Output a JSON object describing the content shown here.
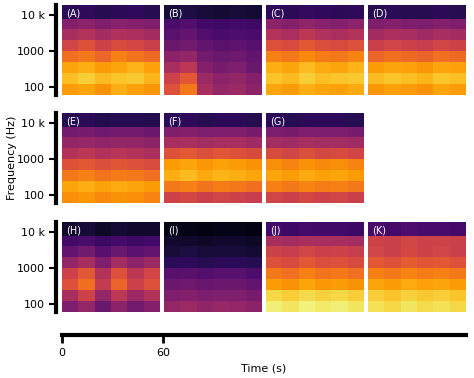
{
  "chart_data": [
    {
      "type": "heatmap",
      "title": "(A)",
      "log": "y",
      "tick_labels": "y",
      "xlim": [
        0,
        60
      ],
      "ylim": [
        60,
        19000
      ],
      "yticks": [
        100,
        1000,
        {
          "value": 10000,
          "label": "10 k"
        }
      ],
      "color_range": [
        0,
        1
      ],
      "x_edges": [
        0,
        10,
        20,
        30,
        40,
        50,
        60
      ],
      "y_edges": [
        60,
        120,
        250,
        500,
        1000,
        2000,
        4000,
        8000,
        19000
      ],
      "cells": [
        [
          0.78,
          0.8,
          0.76,
          0.82,
          0.79,
          0.77
        ],
        [
          0.85,
          0.88,
          0.84,
          0.86,
          0.87,
          0.83
        ],
        [
          0.8,
          0.82,
          0.78,
          0.8,
          0.83,
          0.79
        ],
        [
          0.68,
          0.7,
          0.66,
          0.72,
          0.69,
          0.67
        ],
        [
          0.56,
          0.6,
          0.55,
          0.58,
          0.57,
          0.54
        ],
        [
          0.45,
          0.48,
          0.44,
          0.47,
          0.46,
          0.44
        ],
        [
          0.36,
          0.38,
          0.35,
          0.37,
          0.36,
          0.35
        ],
        [
          0.15,
          0.16,
          0.14,
          0.15,
          0.16,
          0.14
        ]
      ]
    },
    {
      "type": "heatmap",
      "title": "(B)",
      "log": "y",
      "tick_labels": false,
      "xlim": [
        0,
        60
      ],
      "ylim": [
        60,
        19000
      ],
      "color_range": [
        0,
        1
      ],
      "x_edges": [
        0,
        10,
        20,
        30,
        40,
        50,
        60
      ],
      "y_edges": [
        60,
        120,
        250,
        500,
        1000,
        2000,
        4000,
        8000,
        19000
      ],
      "cells": [
        [
          0.6,
          0.7,
          0.45,
          0.4,
          0.42,
          0.38
        ],
        [
          0.55,
          0.62,
          0.42,
          0.38,
          0.4,
          0.36
        ],
        [
          0.45,
          0.5,
          0.36,
          0.33,
          0.35,
          0.3
        ],
        [
          0.38,
          0.4,
          0.32,
          0.3,
          0.31,
          0.28
        ],
        [
          0.3,
          0.32,
          0.28,
          0.26,
          0.27,
          0.25
        ],
        [
          0.26,
          0.28,
          0.24,
          0.22,
          0.23,
          0.22
        ],
        [
          0.22,
          0.24,
          0.2,
          0.19,
          0.2,
          0.19
        ],
        [
          0.1,
          0.12,
          0.1,
          0.09,
          0.1,
          0.09
        ]
      ]
    },
    {
      "type": "heatmap",
      "title": "(C)",
      "log": "y",
      "tick_labels": false,
      "xlim": [
        0,
        60
      ],
      "ylim": [
        60,
        19000
      ],
      "color_range": [
        0,
        1
      ],
      "x_edges": [
        0,
        10,
        20,
        30,
        40,
        50,
        60
      ],
      "y_edges": [
        60,
        120,
        250,
        500,
        1000,
        2000,
        4000,
        8000,
        19000
      ],
      "cells": [
        [
          0.8,
          0.78,
          0.82,
          0.8,
          0.79,
          0.81
        ],
        [
          0.86,
          0.84,
          0.88,
          0.85,
          0.86,
          0.87
        ],
        [
          0.82,
          0.8,
          0.84,
          0.81,
          0.8,
          0.83
        ],
        [
          0.72,
          0.7,
          0.74,
          0.71,
          0.7,
          0.73
        ],
        [
          0.6,
          0.58,
          0.62,
          0.59,
          0.58,
          0.6
        ],
        [
          0.48,
          0.46,
          0.5,
          0.47,
          0.46,
          0.48
        ],
        [
          0.38,
          0.36,
          0.39,
          0.37,
          0.36,
          0.38
        ],
        [
          0.16,
          0.15,
          0.17,
          0.16,
          0.15,
          0.16
        ]
      ]
    },
    {
      "type": "heatmap",
      "title": "(D)",
      "log": "y",
      "tick_labels": false,
      "xlim": [
        0,
        60
      ],
      "ylim": [
        60,
        19000
      ],
      "color_range": [
        0,
        1
      ],
      "x_edges": [
        0,
        10,
        20,
        30,
        40,
        50,
        60
      ],
      "y_edges": [
        60,
        120,
        250,
        500,
        1000,
        2000,
        4000,
        8000,
        19000
      ],
      "cells": [
        [
          0.77,
          0.79,
          0.78,
          0.76,
          0.8,
          0.78
        ],
        [
          0.84,
          0.86,
          0.85,
          0.83,
          0.86,
          0.85
        ],
        [
          0.78,
          0.8,
          0.79,
          0.77,
          0.8,
          0.79
        ],
        [
          0.66,
          0.68,
          0.67,
          0.65,
          0.68,
          0.67
        ],
        [
          0.54,
          0.56,
          0.55,
          0.53,
          0.56,
          0.55
        ],
        [
          0.44,
          0.46,
          0.45,
          0.43,
          0.45,
          0.44
        ],
        [
          0.35,
          0.36,
          0.35,
          0.34,
          0.36,
          0.35
        ],
        [
          0.14,
          0.15,
          0.14,
          0.14,
          0.15,
          0.14
        ]
      ]
    },
    {
      "type": "heatmap",
      "title": "(E)",
      "log": "y",
      "tick_labels": "y",
      "xlim": [
        0,
        60
      ],
      "ylim": [
        60,
        19000
      ],
      "yticks": [
        100,
        1000,
        {
          "value": 10000,
          "label": "10 k"
        }
      ],
      "color_range": [
        0,
        1
      ],
      "x_edges": [
        0,
        10,
        20,
        30,
        40,
        50,
        60
      ],
      "y_edges": [
        60,
        120,
        250,
        500,
        1000,
        2000,
        4000,
        8000,
        19000
      ],
      "cells": [
        [
          0.75,
          0.77,
          0.74,
          0.76,
          0.75,
          0.73
        ],
        [
          0.8,
          0.82,
          0.79,
          0.81,
          0.8,
          0.78
        ],
        [
          0.7,
          0.72,
          0.69,
          0.71,
          0.7,
          0.68
        ],
        [
          0.6,
          0.62,
          0.59,
          0.61,
          0.6,
          0.58
        ],
        [
          0.48,
          0.5,
          0.47,
          0.49,
          0.48,
          0.46
        ],
        [
          0.4,
          0.41,
          0.39,
          0.4,
          0.4,
          0.38
        ],
        [
          0.32,
          0.33,
          0.31,
          0.32,
          0.32,
          0.3
        ],
        [
          0.14,
          0.15,
          0.13,
          0.14,
          0.14,
          0.13
        ]
      ]
    },
    {
      "type": "heatmap",
      "title": "(F)",
      "log": "y",
      "tick_labels": false,
      "xlim": [
        0,
        60
      ],
      "ylim": [
        60,
        19000
      ],
      "color_range": [
        0,
        1
      ],
      "x_edges": [
        0,
        10,
        20,
        30,
        40,
        50,
        60
      ],
      "y_edges": [
        60,
        120,
        250,
        500,
        1000,
        2000,
        4000,
        8000,
        19000
      ],
      "cells": [
        [
          0.55,
          0.57,
          0.54,
          0.56,
          0.55,
          0.53
        ],
        [
          0.7,
          0.72,
          0.69,
          0.71,
          0.7,
          0.68
        ],
        [
          0.82,
          0.84,
          0.81,
          0.83,
          0.82,
          0.8
        ],
        [
          0.78,
          0.8,
          0.77,
          0.79,
          0.78,
          0.76
        ],
        [
          0.6,
          0.62,
          0.59,
          0.61,
          0.6,
          0.58
        ],
        [
          0.45,
          0.46,
          0.44,
          0.45,
          0.45,
          0.43
        ],
        [
          0.35,
          0.36,
          0.34,
          0.35,
          0.35,
          0.33
        ],
        [
          0.15,
          0.16,
          0.14,
          0.15,
          0.15,
          0.14
        ]
      ]
    },
    {
      "type": "heatmap",
      "title": "(G)",
      "log": "y",
      "tick_labels": false,
      "xlim": [
        0,
        60
      ],
      "ylim": [
        60,
        19000
      ],
      "color_range": [
        0,
        1
      ],
      "x_edges": [
        0,
        10,
        20,
        30,
        40,
        50,
        60
      ],
      "y_edges": [
        60,
        120,
        250,
        500,
        1000,
        2000,
        4000,
        8000,
        19000
      ],
      "cells": [
        [
          0.56,
          0.54,
          0.57,
          0.55,
          0.56,
          0.54
        ],
        [
          0.72,
          0.7,
          0.73,
          0.71,
          0.72,
          0.7
        ],
        [
          0.8,
          0.78,
          0.81,
          0.79,
          0.8,
          0.78
        ],
        [
          0.75,
          0.73,
          0.76,
          0.74,
          0.75,
          0.73
        ],
        [
          0.58,
          0.56,
          0.59,
          0.57,
          0.58,
          0.56
        ],
        [
          0.44,
          0.43,
          0.45,
          0.44,
          0.44,
          0.43
        ],
        [
          0.34,
          0.33,
          0.35,
          0.34,
          0.34,
          0.33
        ],
        [
          0.15,
          0.14,
          0.15,
          0.15,
          0.15,
          0.14
        ]
      ]
    },
    {
      "type": "heatmap",
      "title": "(H)",
      "log": "y",
      "tick_labels": "y",
      "xlim": [
        0,
        60
      ],
      "ylim": [
        60,
        19000
      ],
      "yticks": [
        100,
        1000,
        {
          "value": 10000,
          "label": "10 k"
        }
      ],
      "color_range": [
        0,
        1
      ],
      "x_edges": [
        0,
        10,
        20,
        30,
        40,
        50,
        60
      ],
      "y_edges": [
        60,
        120,
        250,
        500,
        1000,
        2000,
        4000,
        8000,
        19000
      ],
      "cells": [
        [
          0.35,
          0.4,
          0.3,
          0.38,
          0.32,
          0.36
        ],
        [
          0.45,
          0.55,
          0.4,
          0.5,
          0.42,
          0.48
        ],
        [
          0.6,
          0.68,
          0.52,
          0.65,
          0.55,
          0.6
        ],
        [
          0.55,
          0.62,
          0.48,
          0.6,
          0.5,
          0.56
        ],
        [
          0.4,
          0.45,
          0.35,
          0.44,
          0.38,
          0.42
        ],
        [
          0.28,
          0.32,
          0.25,
          0.3,
          0.26,
          0.28
        ],
        [
          0.2,
          0.22,
          0.18,
          0.21,
          0.19,
          0.2
        ],
        [
          0.08,
          0.1,
          0.07,
          0.09,
          0.08,
          0.08
        ]
      ]
    },
    {
      "type": "heatmap",
      "title": "(I)",
      "log": "y",
      "tick_labels": false,
      "xlim": [
        0,
        60
      ],
      "ylim": [
        60,
        19000
      ],
      "color_range": [
        0,
        1
      ],
      "x_edges": [
        0,
        10,
        20,
        30,
        40,
        50,
        60
      ],
      "y_edges": [
        60,
        120,
        250,
        500,
        1000,
        2000,
        4000,
        8000,
        19000
      ],
      "cells": [
        [
          0.4,
          0.42,
          0.39,
          0.41,
          0.4,
          0.38
        ],
        [
          0.35,
          0.36,
          0.34,
          0.35,
          0.35,
          0.33
        ],
        [
          0.3,
          0.31,
          0.29,
          0.3,
          0.3,
          0.28
        ],
        [
          0.25,
          0.26,
          0.24,
          0.25,
          0.25,
          0.23
        ],
        [
          0.15,
          0.16,
          0.14,
          0.15,
          0.15,
          0.14
        ],
        [
          0.1,
          0.11,
          0.1,
          0.1,
          0.1,
          0.09
        ],
        [
          0.08,
          0.08,
          0.07,
          0.08,
          0.08,
          0.07
        ],
        [
          0.04,
          0.04,
          0.03,
          0.04,
          0.04,
          0.03
        ]
      ]
    },
    {
      "type": "heatmap",
      "title": "(J)",
      "log": "y",
      "tick_labels": false,
      "xlim": [
        0,
        60
      ],
      "ylim": [
        60,
        19000
      ],
      "color_range": [
        0,
        1
      ],
      "x_edges": [
        0,
        10,
        20,
        30,
        40,
        50,
        60
      ],
      "y_edges": [
        60,
        120,
        250,
        500,
        1000,
        2000,
        4000,
        8000,
        19000
      ],
      "cells": [
        [
          0.95,
          0.93,
          0.96,
          0.94,
          0.95,
          0.93
        ],
        [
          0.9,
          0.88,
          0.91,
          0.89,
          0.9,
          0.88
        ],
        [
          0.78,
          0.76,
          0.8,
          0.77,
          0.78,
          0.76
        ],
        [
          0.7,
          0.68,
          0.72,
          0.69,
          0.7,
          0.68
        ],
        [
          0.6,
          0.58,
          0.62,
          0.59,
          0.6,
          0.58
        ],
        [
          0.55,
          0.53,
          0.56,
          0.54,
          0.55,
          0.53
        ],
        [
          0.45,
          0.44,
          0.46,
          0.45,
          0.45,
          0.44
        ],
        [
          0.2,
          0.19,
          0.21,
          0.2,
          0.2,
          0.19
        ]
      ]
    },
    {
      "type": "heatmap",
      "title": "(K)",
      "log": "y",
      "tick_labels": false,
      "xlim": [
        0,
        60
      ],
      "ylim": [
        60,
        19000
      ],
      "color_range": [
        0,
        1
      ],
      "x_edges": [
        0,
        10,
        20,
        30,
        40,
        50,
        60
      ],
      "y_edges": [
        60,
        120,
        250,
        500,
        1000,
        2000,
        4000,
        8000,
        19000
      ],
      "cells": [
        [
          0.92,
          0.9,
          0.93,
          0.91,
          0.92,
          0.9
        ],
        [
          0.88,
          0.86,
          0.89,
          0.87,
          0.88,
          0.86
        ],
        [
          0.8,
          0.78,
          0.81,
          0.79,
          0.8,
          0.78
        ],
        [
          0.72,
          0.7,
          0.73,
          0.71,
          0.72,
          0.7
        ],
        [
          0.62,
          0.6,
          0.63,
          0.61,
          0.62,
          0.6
        ],
        [
          0.56,
          0.54,
          0.57,
          0.55,
          0.56,
          0.54
        ],
        [
          0.55,
          0.54,
          0.56,
          0.55,
          0.55,
          0.54
        ],
        [
          0.22,
          0.21,
          0.23,
          0.22,
          0.22,
          0.21
        ]
      ]
    },
    {
      "type": "axis",
      "xlabel": "Time (s)",
      "ylabel": "Frequency (Hz)",
      "xlim": [
        0,
        240
      ],
      "xticks": [
        0,
        60
      ]
    }
  ]
}
